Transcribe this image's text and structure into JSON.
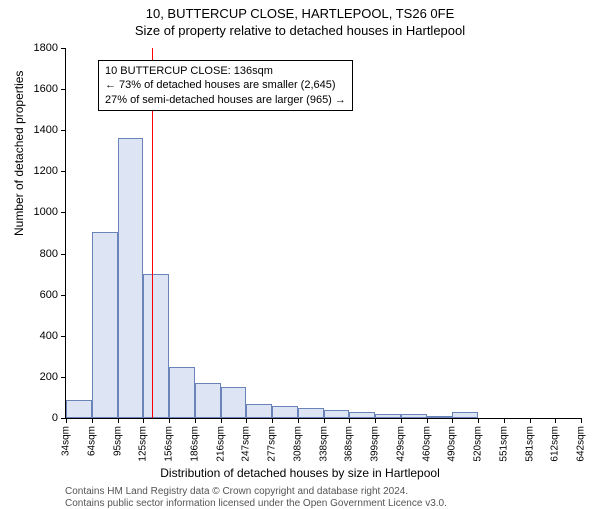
{
  "title_main": "10, BUTTERCUP CLOSE, HARTLEPOOL, TS26 0FE",
  "title_sub": "Size of property relative to detached houses in Hartlepool",
  "y_axis_label": "Number of detached properties",
  "x_axis_label": "Distribution of detached houses by size in Hartlepool",
  "footer_line1": "Contains HM Land Registry data © Crown copyright and database right 2024.",
  "footer_line2": "Contains public sector information licensed under the Open Government Licence v3.0.",
  "annotation": {
    "line1": "10 BUTTERCUP CLOSE: 136sqm",
    "line2": "← 73% of detached houses are smaller (2,645)",
    "line3": "27% of semi-detached houses are larger (965) →"
  },
  "chart": {
    "type": "histogram",
    "ylim": [
      0,
      1800
    ],
    "ytick_step": 200,
    "bar_fill": "#dde5f4",
    "bar_border": "#6a83b8",
    "marker_color": "#ff0000",
    "marker_x_value": 136,
    "background_color": "#ffffff",
    "x_ticks": [
      "34sqm",
      "64sqm",
      "95sqm",
      "125sqm",
      "156sqm",
      "186sqm",
      "216sqm",
      "247sqm",
      "277sqm",
      "308sqm",
      "338sqm",
      "368sqm",
      "399sqm",
      "429sqm",
      "460sqm",
      "490sqm",
      "520sqm",
      "551sqm",
      "581sqm",
      "612sqm",
      "642sqm"
    ],
    "bars": [
      90,
      905,
      1360,
      700,
      250,
      170,
      150,
      70,
      60,
      50,
      40,
      30,
      20,
      20,
      5,
      30,
      0,
      0,
      0,
      0
    ]
  }
}
